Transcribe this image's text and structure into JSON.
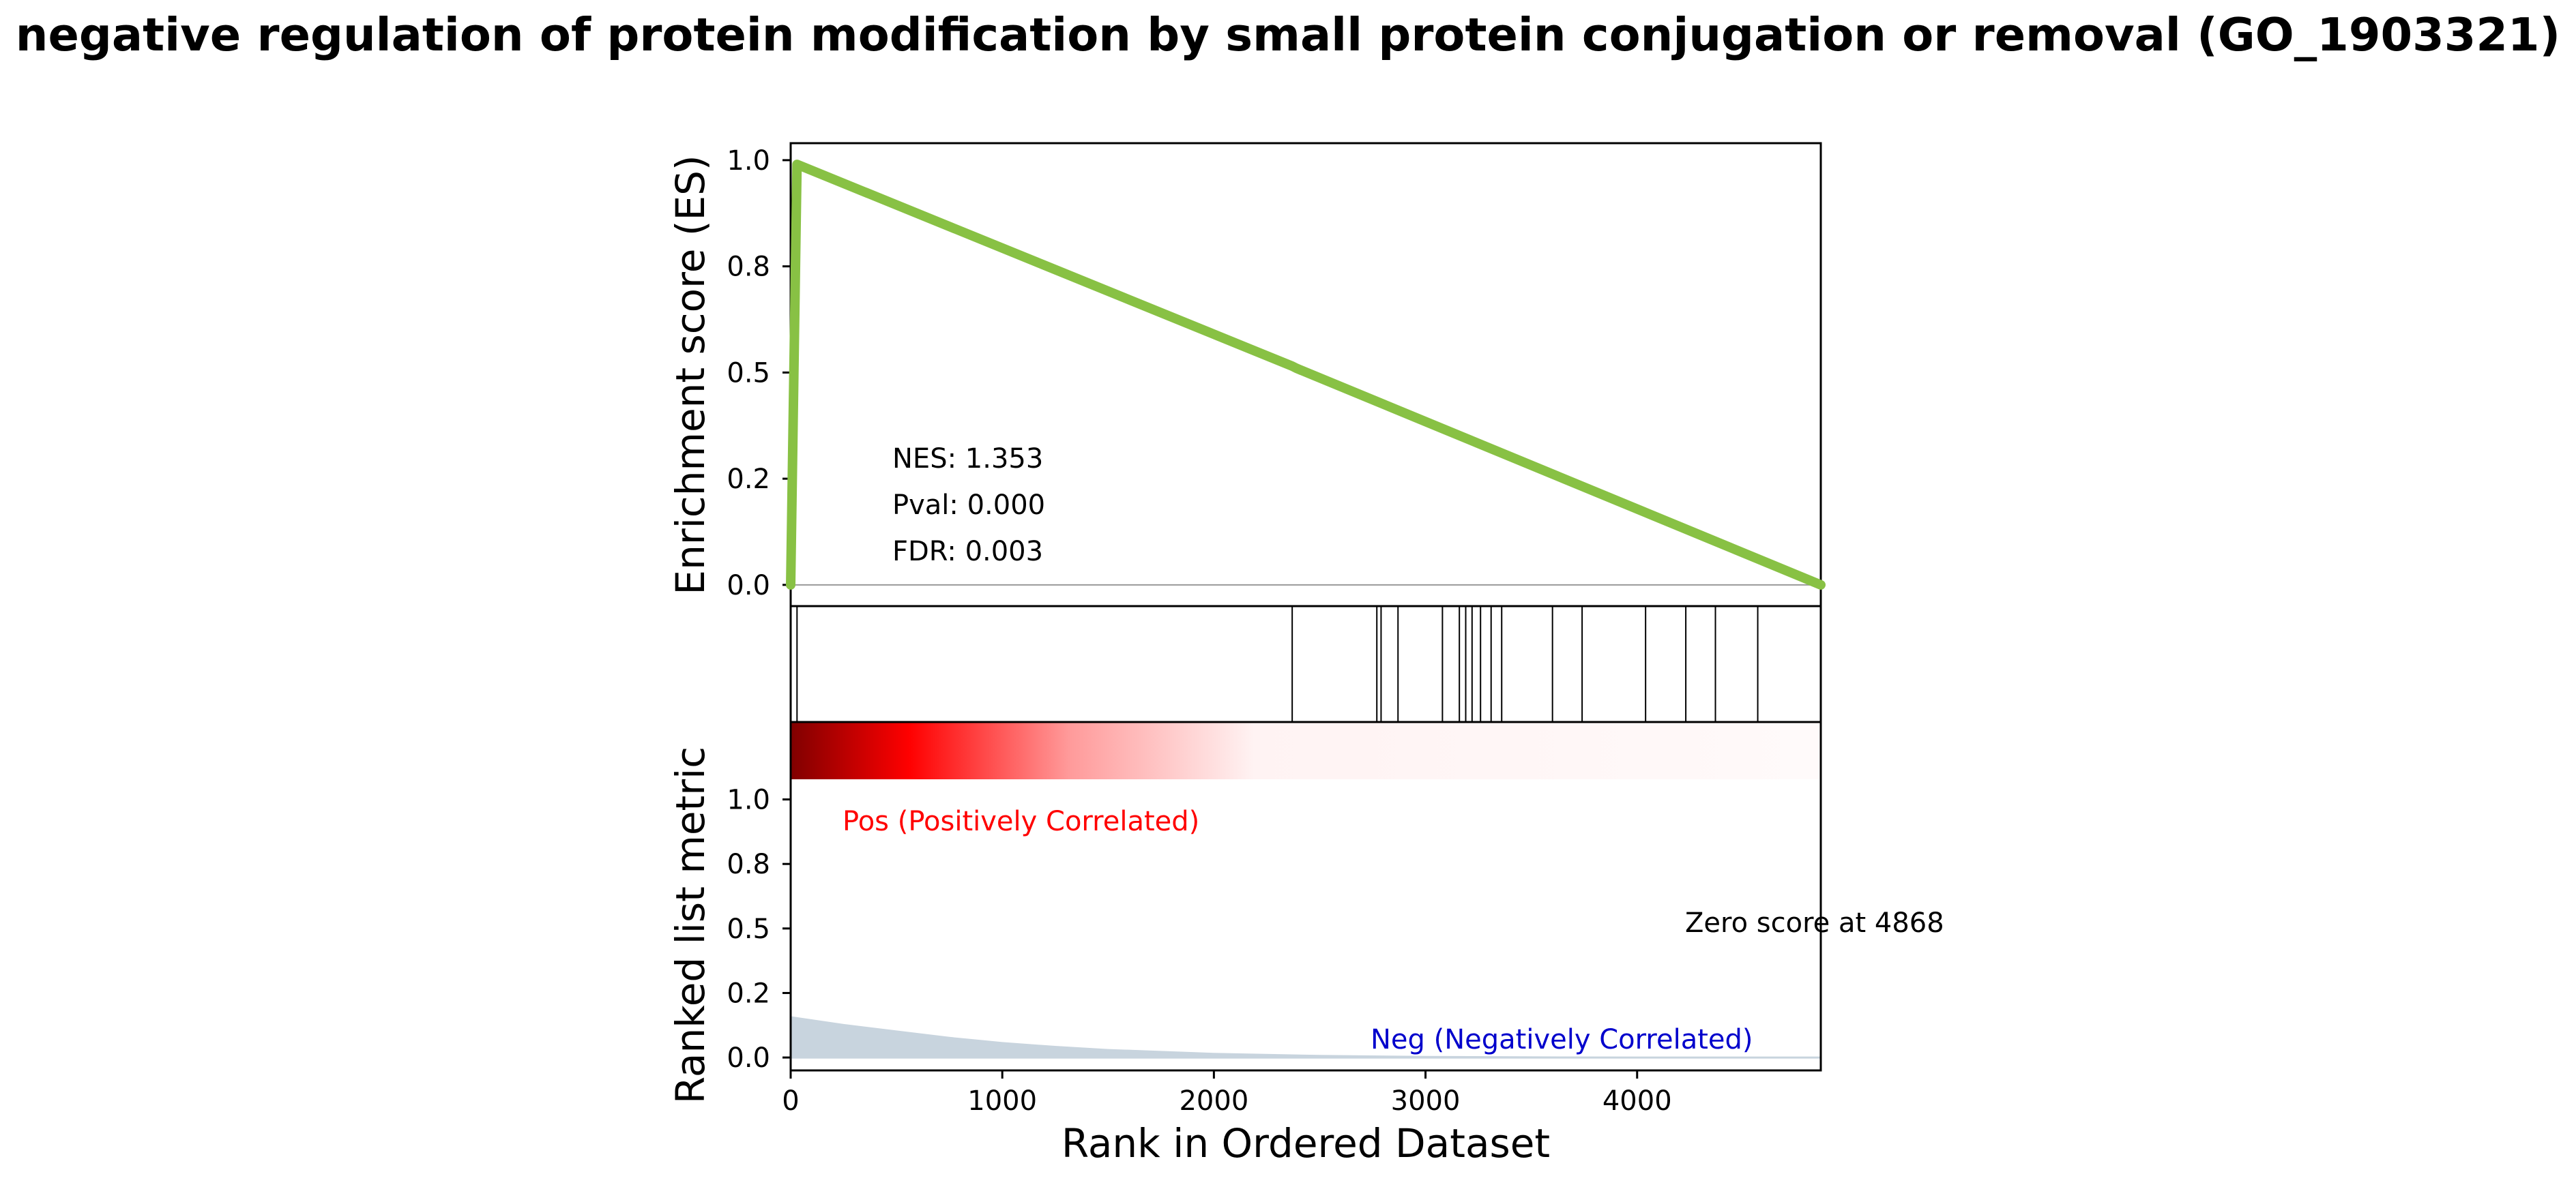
{
  "chart_data": {
    "type": "line",
    "title": "negative regulation of protein modification by small protein conjugation or removal (GO_1903321)",
    "es_panel": {
      "ylabel": "Enrichment score (ES)",
      "yticks": [
        "0.0",
        "0.2",
        "0.5",
        "0.8",
        "1.0"
      ],
      "ytick_values": [
        0.0,
        0.25,
        0.5,
        0.75,
        1.0
      ],
      "ylim": [
        -0.05,
        1.04
      ],
      "line_color": "#88c144",
      "x": [
        0,
        30,
        2370,
        2390,
        4868
      ],
      "y": [
        0.0,
        0.99,
        0.515,
        0.51,
        0.0
      ],
      "stats": [
        "NES: 1.353",
        "Pval: 0.000",
        "FDR: 0.003"
      ]
    },
    "hits": [
      30,
      2370,
      2770,
      2790,
      2870,
      3080,
      3160,
      3190,
      3220,
      3260,
      3310,
      3360,
      3600,
      3740,
      4040,
      4230,
      4370,
      4570
    ],
    "ranked_panel": {
      "ylabel": "Ranked list metric",
      "yticks": [
        "0.0",
        "0.2",
        "0.5",
        "0.8",
        "1.0"
      ],
      "ytick_values": [
        0.0,
        0.25,
        0.5,
        0.75,
        1.0
      ],
      "ylim": [
        -0.05,
        1.3
      ],
      "pos_label": "Pos (Positively Correlated)",
      "neg_label": "Neg (Negatively Correlated)",
      "zero_label": "Zero score at 4868",
      "pos_color": "#ff0000",
      "neg_color": "#0000cc",
      "fill_color": "#c8d4de",
      "metric_x": [
        0,
        250,
        500,
        750,
        1000,
        1250,
        1500,
        2000,
        2500,
        3000,
        4000,
        4868
      ],
      "metric_y": [
        0.16,
        0.13,
        0.105,
        0.08,
        0.06,
        0.045,
        0.033,
        0.018,
        0.01,
        0.006,
        0.003,
        0.0
      ]
    },
    "xlabel": "Rank in Ordered Dataset",
    "xticks": [
      "0",
      "1000",
      "2000",
      "3000",
      "4000"
    ],
    "xtick_values": [
      0,
      1000,
      2000,
      3000,
      4000
    ],
    "xlim": [
      0,
      4868
    ]
  }
}
